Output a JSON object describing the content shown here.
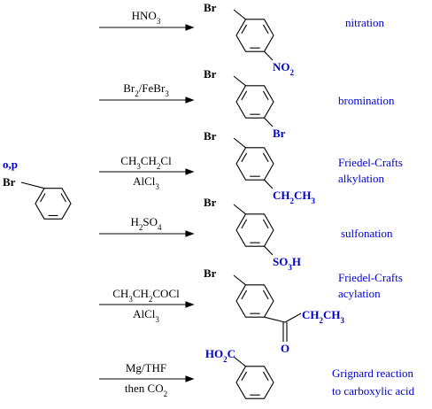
{
  "start": {
    "label": "o,p",
    "substituent": "Br"
  },
  "reactions": [
    {
      "reagents": [
        [
          "HNO",
          "3"
        ]
      ],
      "product": {
        "top": "Br",
        "substituent": [
          "NO",
          "2"
        ]
      },
      "name": [
        "nitration"
      ]
    },
    {
      "reagents": [
        [
          "Br",
          "2",
          "/FeBr",
          "3"
        ]
      ],
      "product": {
        "top": "Br",
        "substituent": [
          "Br"
        ]
      },
      "name": [
        "bromination"
      ]
    },
    {
      "reagents": [
        [
          "CH",
          "3",
          "CH",
          "2",
          "Cl"
        ],
        [
          "AlCl",
          "3"
        ]
      ],
      "product": {
        "top": "Br",
        "substituent": [
          "CH",
          "2",
          "CH",
          "3"
        ]
      },
      "name": [
        "Friedel-Crafts",
        "alkylation"
      ]
    },
    {
      "reagents": [
        [
          "H",
          "2",
          "SO",
          "4"
        ]
      ],
      "product": {
        "top": "Br",
        "substituent": [
          "SO",
          "3",
          "H"
        ]
      },
      "name": [
        "sulfonation"
      ]
    },
    {
      "reagents": [
        [
          "CH",
          "3",
          "CH",
          "2",
          "COCl"
        ],
        [
          "AlCl",
          "3"
        ]
      ],
      "product": {
        "top": "Br",
        "substituent": [
          "CH",
          "2",
          "CH",
          "3"
        ],
        "carbonyl": "O"
      },
      "name": [
        "Friedel-Crafts",
        "acylation"
      ]
    },
    {
      "reagents": [
        [
          "Mg/THF"
        ],
        [
          "then CO",
          "2"
        ]
      ],
      "product": {
        "top": [
          "HO",
          "2",
          "C"
        ]
      },
      "name": [
        "Grignard reaction",
        "to carboxylic acid"
      ]
    }
  ]
}
